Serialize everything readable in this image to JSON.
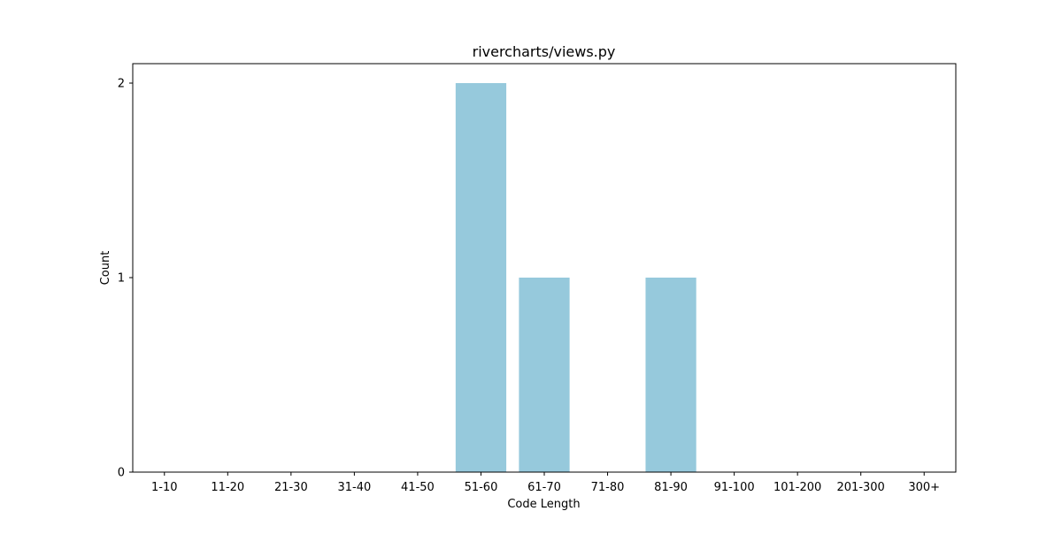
{
  "chart_data": {
    "type": "bar",
    "title": "rivercharts/views.py",
    "xlabel": "Code Length",
    "ylabel": "Count",
    "categories": [
      "1-10",
      "11-20",
      "21-30",
      "31-40",
      "41-50",
      "51-60",
      "61-70",
      "71-80",
      "81-90",
      "91-100",
      "101-200",
      "201-300",
      "300+"
    ],
    "values": [
      0,
      0,
      0,
      0,
      0,
      2,
      1,
      0,
      1,
      0,
      0,
      0,
      0
    ],
    "ylim": [
      0,
      2.1
    ],
    "yticks": [
      0,
      1,
      2
    ],
    "bar_color": "#96c9dc",
    "grid": false
  }
}
